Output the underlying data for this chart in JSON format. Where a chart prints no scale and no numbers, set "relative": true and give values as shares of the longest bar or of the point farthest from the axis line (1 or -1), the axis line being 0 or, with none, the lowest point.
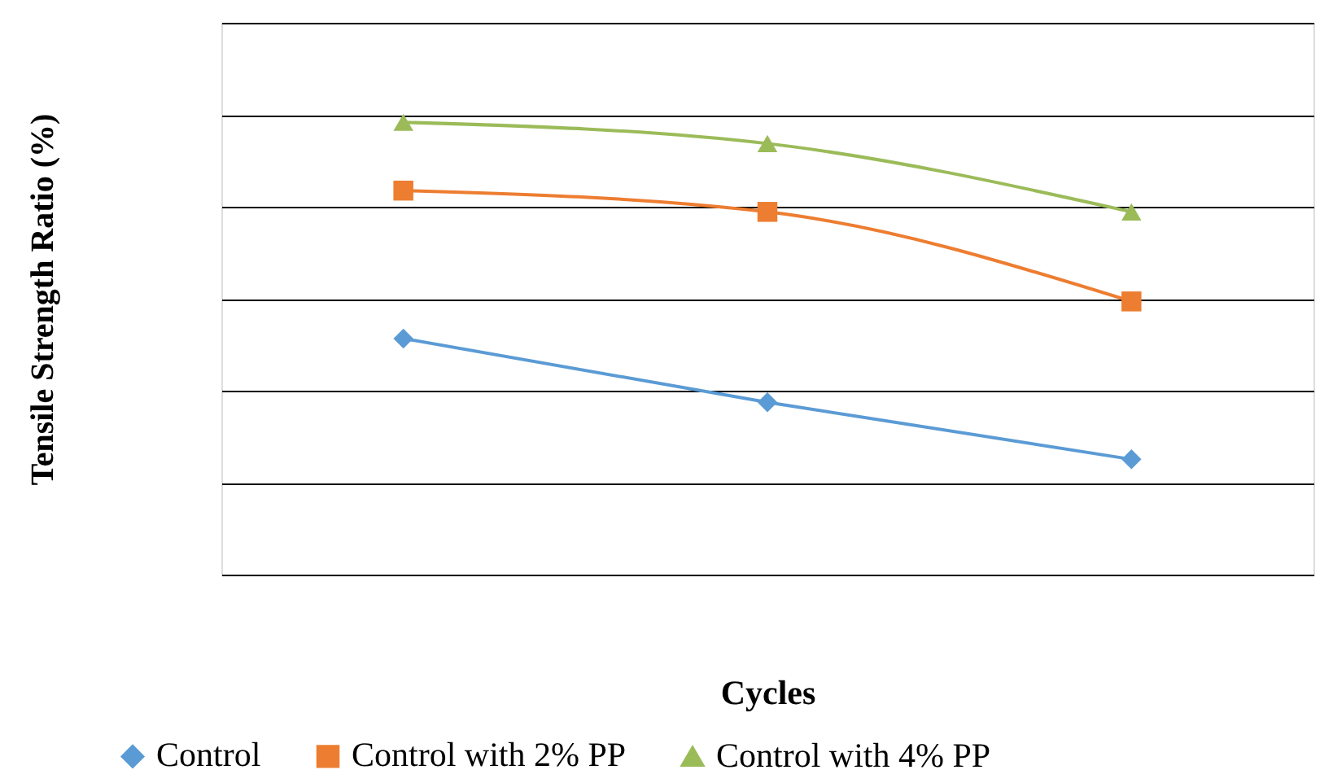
{
  "chart_data": {
    "type": "line",
    "relative": true,
    "xlabel": "Cycles",
    "ylabel": "Tensile Strength Ratio (%)",
    "categories": [
      null,
      null,
      null
    ],
    "grid": "y",
    "legend": "bottom",
    "line_style": "solid",
    "series": [
      {
        "name": "Control",
        "color": "#5b9bd5",
        "marker": "diamond",
        "values": [
          0.522,
          0.381,
          0.255
        ]
      },
      {
        "name": "Control with 2% PP",
        "color": "#ed7d31",
        "marker": "square",
        "values": [
          0.849,
          0.802,
          0.604
        ]
      },
      {
        "name": "Control with 4% PP",
        "color": "#9bbb59",
        "marker": "triangle",
        "values": [
          1,
          0.953,
          0.802
        ]
      }
    ]
  }
}
